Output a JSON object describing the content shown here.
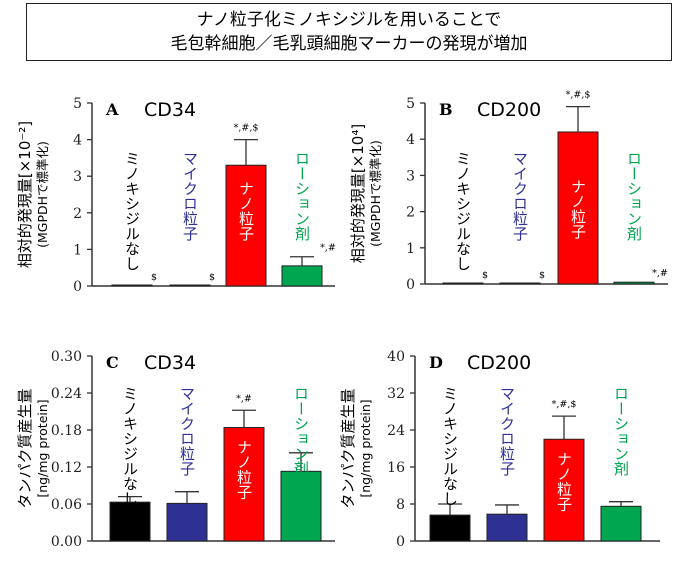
{
  "title": {
    "line1": "ナノ粒子化ミノキシジルを用いることで",
    "line2": "毛包幹細胞／毛乳頭細胞マーカーの発現が増加"
  },
  "chart_data": [
    {
      "type": "bar",
      "panel": "A",
      "title": "CD34",
      "ylabel": "相対的発現量[×10⁻²]",
      "ylabel2": "(MGPDHで標準化)",
      "ylim": [
        0,
        5
      ],
      "yticks": [
        "0",
        "1",
        "2",
        "3",
        "4",
        "5"
      ],
      "categories": [
        "ミノキシジルなし",
        "マイクロ粒子",
        "ナノ粒子",
        "ローション剤"
      ],
      "colors": [
        "#000000",
        "#2e3192",
        "#ff0000",
        "#00a650"
      ],
      "label_colors": [
        "#000000",
        "#2e3192",
        "#ffffff",
        "#00a650"
      ],
      "values": [
        0.02,
        0.02,
        3.3,
        0.55
      ],
      "errors": [
        0,
        0,
        0.7,
        0.25
      ],
      "annotations": [
        "$",
        "$",
        "*,#,$",
        "*,#"
      ]
    },
    {
      "type": "bar",
      "panel": "B",
      "title": "CD200",
      "ylabel": "相対的発現量[×10⁴]",
      "ylabel2": "(MGPDHで標準化)",
      "ylim": [
        0,
        5
      ],
      "yticks": [
        "0",
        "1",
        "2",
        "3",
        "4",
        "5"
      ],
      "categories": [
        "ミノキシジルなし",
        "マイクロ粒子",
        "ナノ粒子",
        "ローション剤"
      ],
      "colors": [
        "#000000",
        "#2e3192",
        "#ff0000",
        "#00a650"
      ],
      "label_colors": [
        "#000000",
        "#2e3192",
        "#ffffff",
        "#00a650"
      ],
      "values": [
        0.02,
        0.02,
        4.2,
        0.05
      ],
      "errors": [
        0,
        0,
        0.7,
        0
      ],
      "annotations": [
        "$",
        "$",
        "*,#,$",
        "*,#"
      ]
    },
    {
      "type": "bar",
      "panel": "C",
      "title": "CD34",
      "ylabel": "タンパク質産生量",
      "ylabel2": "[ng/mg protein]",
      "ylim": [
        0,
        0.3
      ],
      "yticks": [
        "0.00",
        "0.06",
        "0.12",
        "0.18",
        "0.24",
        "0.30"
      ],
      "categories": [
        "ミノキシジルなし",
        "マイクロ粒子",
        "ナノ粒子",
        "ローション剤"
      ],
      "colors": [
        "#000000",
        "#2e3192",
        "#ff0000",
        "#00a650"
      ],
      "label_colors": [
        "#000000",
        "#2e3192",
        "#ffffff",
        "#00a650"
      ],
      "values": [
        0.063,
        0.061,
        0.184,
        0.113
      ],
      "errors": [
        0.009,
        0.019,
        0.028,
        0.03
      ],
      "annotations": [
        "",
        "",
        "*,#",
        ""
      ]
    },
    {
      "type": "bar",
      "panel": "D",
      "title": "CD200",
      "ylabel": "タンパク質産生量",
      "ylabel2": "[ng/mg protein]",
      "ylim": [
        0,
        40
      ],
      "yticks": [
        "0",
        "8",
        "16",
        "24",
        "32",
        "40"
      ],
      "categories": [
        "ミノキシジルなし",
        "マイクロ粒子",
        "ナノ粒子",
        "ローション剤"
      ],
      "colors": [
        "#000000",
        "#2e3192",
        "#ff0000",
        "#00a650"
      ],
      "label_colors": [
        "#000000",
        "#2e3192",
        "#ffffff",
        "#00a650"
      ],
      "values": [
        5.6,
        5.8,
        22,
        7.5
      ],
      "errors": [
        2.4,
        2.0,
        5,
        1.0
      ],
      "annotations": [
        "",
        "",
        "*,#,$",
        ""
      ]
    }
  ]
}
